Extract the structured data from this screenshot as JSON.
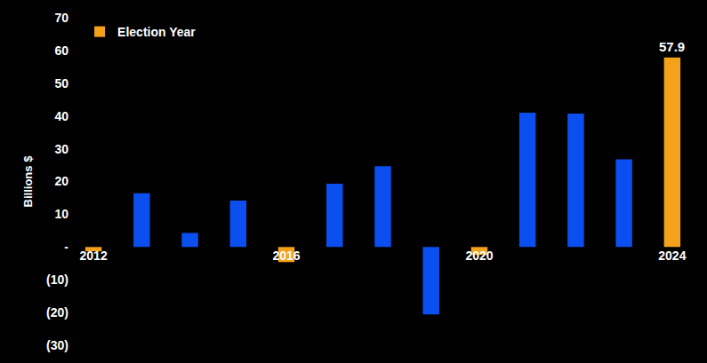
{
  "chart_data": {
    "type": "bar",
    "y_label": "Billions $",
    "categories": [
      "2012",
      null,
      null,
      null,
      "2016",
      null,
      null,
      null,
      "2020",
      null,
      null,
      null,
      "2024"
    ],
    "series": [
      {
        "name": "Election Year",
        "color": "#f5a21b",
        "values": [
          -1.3,
          null,
          null,
          null,
          -4.6,
          null,
          null,
          null,
          -2.4,
          null,
          null,
          null,
          57.9
        ]
      },
      {
        "color": "#0b4ff0",
        "values": [
          null,
          16.4,
          4.3,
          14.2,
          null,
          19.3,
          24.7,
          -20.6,
          null,
          41.0,
          40.7,
          26.8,
          null
        ]
      }
    ],
    "annotations": [
      {
        "text": "57.9",
        "category": "2024",
        "value": 57.9
      }
    ],
    "ylim": [
      -30,
      70
    ],
    "yticks": [
      {
        "value": -30,
        "label": "(30)"
      },
      {
        "value": -20,
        "label": "(20)"
      },
      {
        "value": -10,
        "label": "(10)"
      },
      {
        "value": 0,
        "label": "-"
      },
      10,
      20,
      30,
      40,
      50,
      60,
      70
    ],
    "grid": false,
    "legend": "top left",
    "tick_labels": true
  }
}
